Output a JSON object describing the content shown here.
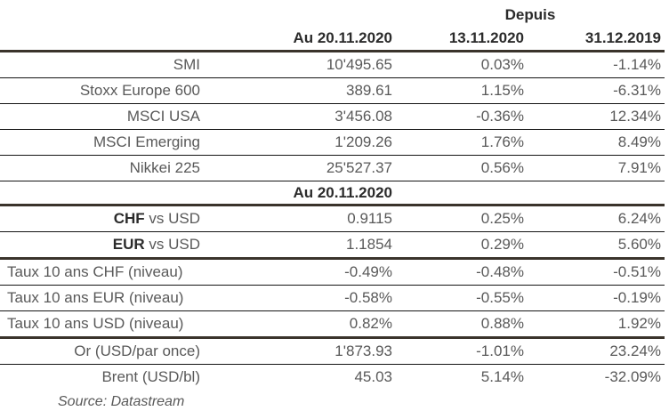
{
  "header": {
    "depuis_label": "Depuis",
    "col_value": "Au 20.11.2020",
    "col_since_1": "13.11.2020",
    "col_since_2": "31.12.2019"
  },
  "section": {
    "label": "Au 20.11.2020"
  },
  "market_rows": [
    {
      "label": "SMI",
      "value": "10'495.65",
      "since_13_11": "0.03%",
      "since_31_12": "-1.14%"
    },
    {
      "label": "Stoxx Europe 600",
      "value": "389.61",
      "since_13_11": "1.15%",
      "since_31_12": "-6.31%"
    },
    {
      "label": "MSCI USA",
      "value": "3'456.08",
      "since_13_11": "-0.36%",
      "since_31_12": "12.34%"
    },
    {
      "label": "MSCI Emerging",
      "value": "1'209.26",
      "since_13_11": "1.76%",
      "since_31_12": "8.49%"
    },
    {
      "label": "Nikkei 225",
      "value": "25'527.37",
      "since_13_11": "0.56%",
      "since_31_12": "7.91%"
    }
  ],
  "fx_rows": [
    {
      "label_bold": "CHF",
      "label_rest": " vs USD",
      "value": "0.9115",
      "since_13_11": "0.25%",
      "since_31_12": "6.24%"
    },
    {
      "label_bold": "EUR",
      "label_rest": " vs USD",
      "value": "1.1854",
      "since_13_11": "0.29%",
      "since_31_12": "5.60%"
    }
  ],
  "rate_rows": [
    {
      "label": "Taux 10 ans CHF (niveau)",
      "value": "-0.49%",
      "since_13_11": "-0.48%",
      "since_31_12": "-0.51%"
    },
    {
      "label": "Taux 10 ans EUR (niveau)",
      "value": "-0.58%",
      "since_13_11": "-0.55%",
      "since_31_12": "-0.19%"
    },
    {
      "label": "Taux 10 ans USD (niveau)",
      "value": "0.82%",
      "since_13_11": "0.88%",
      "since_31_12": "1.92%"
    }
  ],
  "commodity_rows": [
    {
      "label": "Or (USD/par once)",
      "value": "1'873.93",
      "since_13_11": "-1.01%",
      "since_31_12": "23.24%"
    },
    {
      "label": "Brent (USD/bl)",
      "value": "45.03",
      "since_13_11": "5.14%",
      "since_31_12": "-32.09%"
    }
  ],
  "footer": {
    "source": "Source: Datastream"
  },
  "colors": {
    "border_thick": "#3a332b",
    "border_thin": "#141414",
    "text_head": "#2b2b2b",
    "text_data": "#595959",
    "bg": "#ffffff"
  }
}
